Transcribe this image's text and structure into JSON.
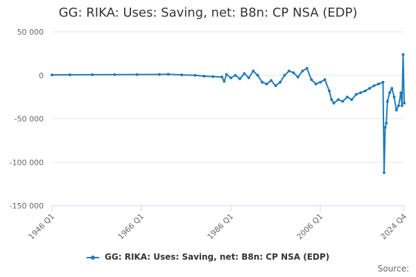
{
  "chart_data": {
    "type": "line",
    "title": "GG: RIKA: Uses: Saving, net: B8n: CP NSA (EDP)",
    "xlabel": "",
    "ylabel": "",
    "x_range": [
      1946,
      2024.75
    ],
    "ylim": [
      -150000,
      50000
    ],
    "yticks": [
      50000,
      0,
      -50000,
      -100000,
      -150000
    ],
    "ytick_labels": [
      "50 000",
      "0",
      "-50 000",
      "-100 000",
      "-150 000"
    ],
    "xticks": [
      1946,
      1966,
      1986,
      2006,
      2024.75
    ],
    "xtick_labels": [
      "1946 Q1",
      "1966 Q1",
      "1986 Q1",
      "2006 Q1",
      "2024 Q4"
    ],
    "grid": "horizontal",
    "legend": "bottom",
    "source_label": "Source:",
    "color": "#1f7ab8",
    "series": [
      {
        "name": "GG: RIKA: Uses: Saving, net: B8n: CP NSA (EDP)",
        "x": [
          1946,
          1950,
          1955,
          1960,
          1965,
          1970,
          1972,
          1975,
          1978,
          1980,
          1982,
          1984,
          1984.5,
          1985,
          1986,
          1987,
          1988,
          1989,
          1990,
          1991,
          1992,
          1993,
          1994,
          1995,
          1996,
          1997,
          1998,
          1999,
          2000,
          2001,
          2002,
          2003,
          2004,
          2005,
          2006,
          2007,
          2008,
          2008.5,
          2009,
          2010,
          2011,
          2012,
          2013,
          2014,
          2015,
          2016,
          2017,
          2018,
          2019,
          2020,
          2020.25,
          2020.5,
          2020.75,
          2021,
          2021.5,
          2022,
          2022.5,
          2023,
          2023.5,
          2024,
          2024.25,
          2024.5,
          2024.75
        ],
        "values": [
          500,
          600,
          700,
          800,
          900,
          1000,
          1200,
          500,
          0,
          -1000,
          -1500,
          -2000,
          -7000,
          1000,
          -3000,
          0,
          -4000,
          2000,
          -3000,
          5000,
          0,
          -8000,
          -10000,
          -6000,
          -12000,
          -8000,
          0,
          5000,
          3000,
          -2000,
          5000,
          8000,
          -5000,
          -10000,
          -8000,
          -5000,
          -18000,
          -28000,
          -32000,
          -28000,
          -30000,
          -25000,
          -28000,
          -22000,
          -20000,
          -18000,
          -15000,
          -12000,
          -10000,
          -8000,
          -112000,
          -60000,
          -55000,
          -30000,
          -20000,
          -15000,
          -25000,
          -40000,
          -35000,
          -20000,
          -35000,
          24000,
          -32000
        ]
      }
    ]
  }
}
